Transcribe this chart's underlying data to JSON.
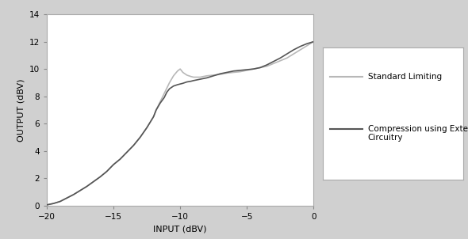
{
  "title": "",
  "xlabel": "INPUT (dBV)",
  "ylabel": "OUTPUT (dBV)",
  "xlim": [
    -20,
    0
  ],
  "ylim": [
    0,
    14
  ],
  "xticks": [
    -20,
    -15,
    -10,
    -5,
    0
  ],
  "yticks": [
    0,
    2,
    4,
    6,
    8,
    10,
    12,
    14
  ],
  "standard_limiting_color": "#b8b8b8",
  "compression_color": "#555555",
  "legend_labels": [
    "Standard Limiting",
    "Compression using External\nCircuitry"
  ],
  "background_color": "#ffffff",
  "outer_bg": "#e8e8e8",
  "standard_limiting_x": [
    -20,
    -19.5,
    -19,
    -18.5,
    -18,
    -17.5,
    -17,
    -16.5,
    -16,
    -15.5,
    -15,
    -14.5,
    -14,
    -13.5,
    -13,
    -12.5,
    -12,
    -11.8,
    -11.5,
    -11.2,
    -11,
    -10.8,
    -10.5,
    -10.2,
    -10.0,
    -9.8,
    -9.5,
    -9.2,
    -9.0,
    -8.5,
    -8.0,
    -7.5,
    -7.0,
    -6.5,
    -6.0,
    -5.5,
    -5.0,
    -4.5,
    -4.0,
    -3.5,
    -3.0,
    -2.5,
    -2.0,
    -1.5,
    -1.0,
    -0.5,
    0.0
  ],
  "standard_limiting_y": [
    0.05,
    0.15,
    0.3,
    0.55,
    0.8,
    1.1,
    1.4,
    1.75,
    2.1,
    2.5,
    3.0,
    3.4,
    3.9,
    4.4,
    5.0,
    5.7,
    6.5,
    7.0,
    7.6,
    8.2,
    8.6,
    9.0,
    9.5,
    9.85,
    10.0,
    9.75,
    9.55,
    9.45,
    9.4,
    9.4,
    9.5,
    9.55,
    9.6,
    9.7,
    9.75,
    9.8,
    9.9,
    10.0,
    10.1,
    10.2,
    10.4,
    10.6,
    10.8,
    11.1,
    11.4,
    11.7,
    12.0
  ],
  "compression_x": [
    -20,
    -19.5,
    -19,
    -18.5,
    -18,
    -17.5,
    -17,
    -16.5,
    -16,
    -15.5,
    -15,
    -14.5,
    -14,
    -13.5,
    -13,
    -12.5,
    -12,
    -11.8,
    -11.5,
    -11.2,
    -11,
    -10.8,
    -10.5,
    -10.2,
    -10.0,
    -9.8,
    -9.5,
    -9.2,
    -9.0,
    -8.5,
    -8.0,
    -7.5,
    -7.0,
    -6.5,
    -6.0,
    -5.5,
    -5.0,
    -4.5,
    -4.0,
    -3.5,
    -3.0,
    -2.5,
    -2.0,
    -1.5,
    -1.0,
    -0.5,
    0.0
  ],
  "compression_y": [
    0.05,
    0.15,
    0.3,
    0.55,
    0.8,
    1.1,
    1.4,
    1.75,
    2.1,
    2.5,
    3.0,
    3.4,
    3.9,
    4.4,
    5.0,
    5.7,
    6.5,
    7.0,
    7.5,
    7.9,
    8.3,
    8.55,
    8.75,
    8.85,
    8.9,
    8.95,
    9.05,
    9.1,
    9.15,
    9.25,
    9.35,
    9.5,
    9.65,
    9.75,
    9.85,
    9.9,
    9.95,
    10.0,
    10.1,
    10.3,
    10.55,
    10.8,
    11.1,
    11.4,
    11.65,
    11.85,
    12.0
  ]
}
